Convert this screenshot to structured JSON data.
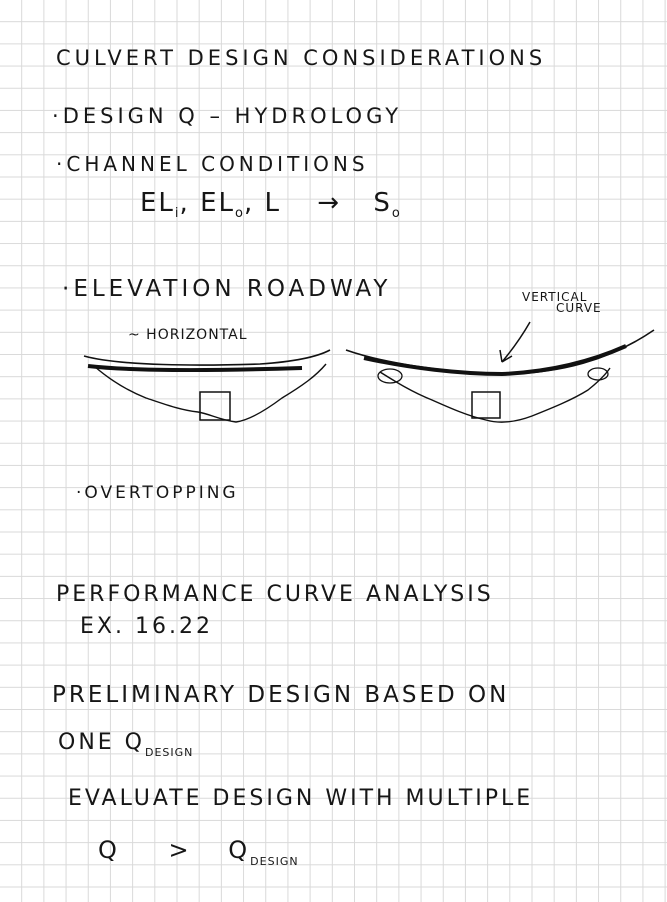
{
  "page": {
    "title": "CULVERT DESIGN CONSIDERATIONS",
    "bullets": {
      "design_q": "DESIGN Q – HYDROLOGY",
      "channel": "CHANNEL CONDITIONS",
      "elevations": {
        "el_label_1": "EL",
        "el_sub_1": "i",
        "el_label_2": "EL",
        "el_sub_2": "o",
        "length": "L",
        "arrow": "→",
        "slope": "S",
        "slope_sub": "o"
      },
      "roadway": "ELEVATION ROADWAY",
      "overtopping": "OVERTOPPING"
    },
    "sketch": {
      "horizontal_label": "~ HORIZONTAL",
      "vertical_label_1": "VERTICAL",
      "vertical_label_2": "CURVE"
    },
    "performance": {
      "heading": "PERFORMANCE CURVE ANALYSIS",
      "example": "EX. 16.22"
    },
    "preliminary": {
      "line1": "PRELIMINARY DESIGN BASED ON",
      "line2_main": "ONE Q",
      "line2_sub": "DESIGN",
      "line3": "EVALUATE DESIGN WITH MULTIPLE",
      "line4_q": "Q",
      "line4_gt": ">",
      "line4_q2": "Q",
      "line4_sub": "DESIGN"
    }
  }
}
